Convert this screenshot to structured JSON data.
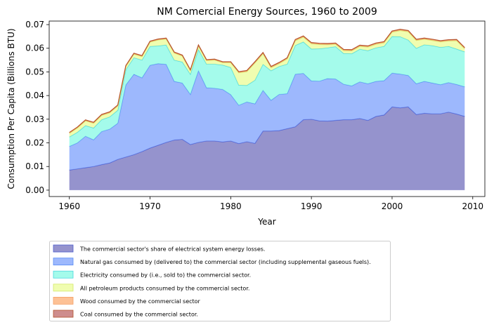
{
  "chart_data": {
    "type": "area",
    "stacked": true,
    "title": "NM Comercial Energy Sources, 1960 to 2009",
    "xlabel": "Year",
    "ylabel": "Consumption Per Capita (Billions BTU)",
    "xlim": [
      1957.5,
      2011.5
    ],
    "ylim": [
      -0.0027,
      0.0715
    ],
    "xticks": [
      1960,
      1970,
      1980,
      1990,
      2000,
      2010
    ],
    "xtick_labels": [
      "1960",
      "1970",
      "1980",
      "1990",
      "2000",
      "2010"
    ],
    "yticks": [
      0.0,
      0.01,
      0.02,
      0.03,
      0.04,
      0.05,
      0.06,
      0.07
    ],
    "ytick_labels": [
      "0.00",
      "0.01",
      "0.02",
      "0.03",
      "0.04",
      "0.05",
      "0.06",
      "0.07"
    ],
    "grid": false,
    "legend_position": "below",
    "x": [
      1960,
      1961,
      1962,
      1963,
      1964,
      1965,
      1966,
      1967,
      1968,
      1969,
      1970,
      1971,
      1972,
      1973,
      1974,
      1975,
      1976,
      1977,
      1978,
      1979,
      1980,
      1981,
      1982,
      1983,
      1984,
      1985,
      1986,
      1987,
      1988,
      1989,
      1990,
      1991,
      1992,
      1993,
      1994,
      1995,
      1996,
      1997,
      1998,
      1999,
      2000,
      2001,
      2002,
      2003,
      2004,
      2005,
      2006,
      2007,
      2008,
      2009
    ],
    "series": [
      {
        "name": "The commercial sector's share of electrical system energy losses.",
        "fill": "#7b78c0",
        "line": "#4e5fcf",
        "values": [
          0.0085,
          0.009,
          0.0095,
          0.01,
          0.0108,
          0.0115,
          0.013,
          0.014,
          0.015,
          0.0163,
          0.0178,
          0.019,
          0.0202,
          0.0212,
          0.0215,
          0.0193,
          0.0202,
          0.0208,
          0.0208,
          0.0204,
          0.0208,
          0.0197,
          0.0205,
          0.0198,
          0.025,
          0.025,
          0.0252,
          0.026,
          0.0268,
          0.0298,
          0.03,
          0.0293,
          0.0292,
          0.0295,
          0.0298,
          0.0298,
          0.0303,
          0.0295,
          0.0312,
          0.0318,
          0.0352,
          0.0348,
          0.0352,
          0.032,
          0.0325,
          0.0323,
          0.0323,
          0.033,
          0.0322,
          0.0312
        ]
      },
      {
        "name": "Natural gas consumed by (delivered to) the commercial sector (including supplemental gaseous fuels).",
        "fill": "#84a6fc",
        "line": "#5b8ef5",
        "values": [
          0.01,
          0.011,
          0.0133,
          0.0113,
          0.014,
          0.0143,
          0.0153,
          0.0305,
          0.034,
          0.0312,
          0.035,
          0.0345,
          0.033,
          0.0248,
          0.0238,
          0.0212,
          0.0303,
          0.0225,
          0.0223,
          0.0222,
          0.0196,
          0.0162,
          0.0168,
          0.0167,
          0.0172,
          0.013,
          0.0153,
          0.0148,
          0.0222,
          0.0196,
          0.0162,
          0.0168,
          0.018,
          0.0175,
          0.015,
          0.0143,
          0.0155,
          0.0155,
          0.0148,
          0.0145,
          0.0143,
          0.0143,
          0.0133,
          0.013,
          0.0135,
          0.013,
          0.0123,
          0.0125,
          0.0125,
          0.0125
        ]
      },
      {
        "name": "Electricity consumed by (i.e., sold to) the commercial sector.",
        "fill": "#8dfae6",
        "line": "#4ad8e0",
        "values": [
          0.004,
          0.0045,
          0.0045,
          0.005,
          0.005,
          0.0052,
          0.0055,
          0.0065,
          0.007,
          0.0075,
          0.008,
          0.0075,
          0.0082,
          0.009,
          0.0089,
          0.0085,
          0.009,
          0.01,
          0.0102,
          0.0103,
          0.0115,
          0.0085,
          0.007,
          0.01,
          0.011,
          0.0125,
          0.0118,
          0.0125,
          0.0122,
          0.0133,
          0.0135,
          0.0137,
          0.013,
          0.0137,
          0.013,
          0.0136,
          0.0138,
          0.014,
          0.0142,
          0.0145,
          0.0155,
          0.0158,
          0.015,
          0.015,
          0.0155,
          0.0158,
          0.0158,
          0.0153,
          0.015,
          0.0148
        ]
      },
      {
        "name": "All petroleum products consumed by the commercial sector.",
        "fill": "#ecfd9c",
        "line": "#d4e86a",
        "values": [
          0.0015,
          0.0018,
          0.002,
          0.002,
          0.0018,
          0.0017,
          0.0018,
          0.0013,
          0.0015,
          0.0015,
          0.0018,
          0.0025,
          0.0025,
          0.003,
          0.0025,
          0.0015,
          0.0015,
          0.0015,
          0.0017,
          0.001,
          0.002,
          0.0052,
          0.0058,
          0.0073,
          0.0045,
          0.0013,
          0.0012,
          0.0022,
          0.002,
          0.002,
          0.0022,
          0.0018,
          0.0013,
          0.001,
          0.0012,
          0.0012,
          0.0012,
          0.0015,
          0.0015,
          0.0015,
          0.0018,
          0.0026,
          0.0035,
          0.0033,
          0.0023,
          0.0022,
          0.0023,
          0.0023,
          0.0035,
          0.0013
        ]
      },
      {
        "name": "Wood consumed by the commercial sector",
        "fill": "#fdb27a",
        "line": "#f4a066",
        "values": [
          0.0003,
          0.0003,
          0.0003,
          0.0003,
          0.0003,
          0.0003,
          0.0003,
          0.0003,
          0.0003,
          0.0003,
          0.0003,
          0.0003,
          0.0003,
          0.0003,
          0.0003,
          0.0003,
          0.0003,
          0.0003,
          0.0003,
          0.0003,
          0.0003,
          0.0004,
          0.0004,
          0.0004,
          0.0004,
          0.0004,
          0.0004,
          0.0004,
          0.0004,
          0.0004,
          0.0004,
          0.0004,
          0.0004,
          0.0004,
          0.0004,
          0.0004,
          0.0004,
          0.0004,
          0.0004,
          0.0004,
          0.0004,
          0.0004,
          0.0004,
          0.0004,
          0.0004,
          0.0004,
          0.0004,
          0.0004,
          0.0004,
          0.0004
        ]
      },
      {
        "name": "Coal consumed by the commercial sector.",
        "fill": "#c27070",
        "line": "#b5542e",
        "values": [
          0.0001,
          0.0001,
          0.0001,
          0.0001,
          0.0001,
          0.0001,
          0.0001,
          0.0001,
          0.0001,
          0.0001,
          0.0001,
          0.0001,
          0.0001,
          0.0001,
          0.0001,
          0.0001,
          0.0001,
          0.0001,
          0.0001,
          0.0001,
          0.0001,
          0.0001,
          0.0001,
          0.0001,
          0.0001,
          0.0001,
          0.0001,
          0.0001,
          0.0001,
          0.0001,
          0.0001,
          0.0001,
          0.0001,
          0.0001,
          0.0001,
          0.0001,
          0.0001,
          0.0001,
          0.0001,
          0.0001,
          0.0001,
          0.0001,
          0.0001,
          0.0001,
          0.0001,
          0.0001,
          0.0001,
          0.0001,
          0.0001,
          0.0001
        ]
      }
    ]
  }
}
